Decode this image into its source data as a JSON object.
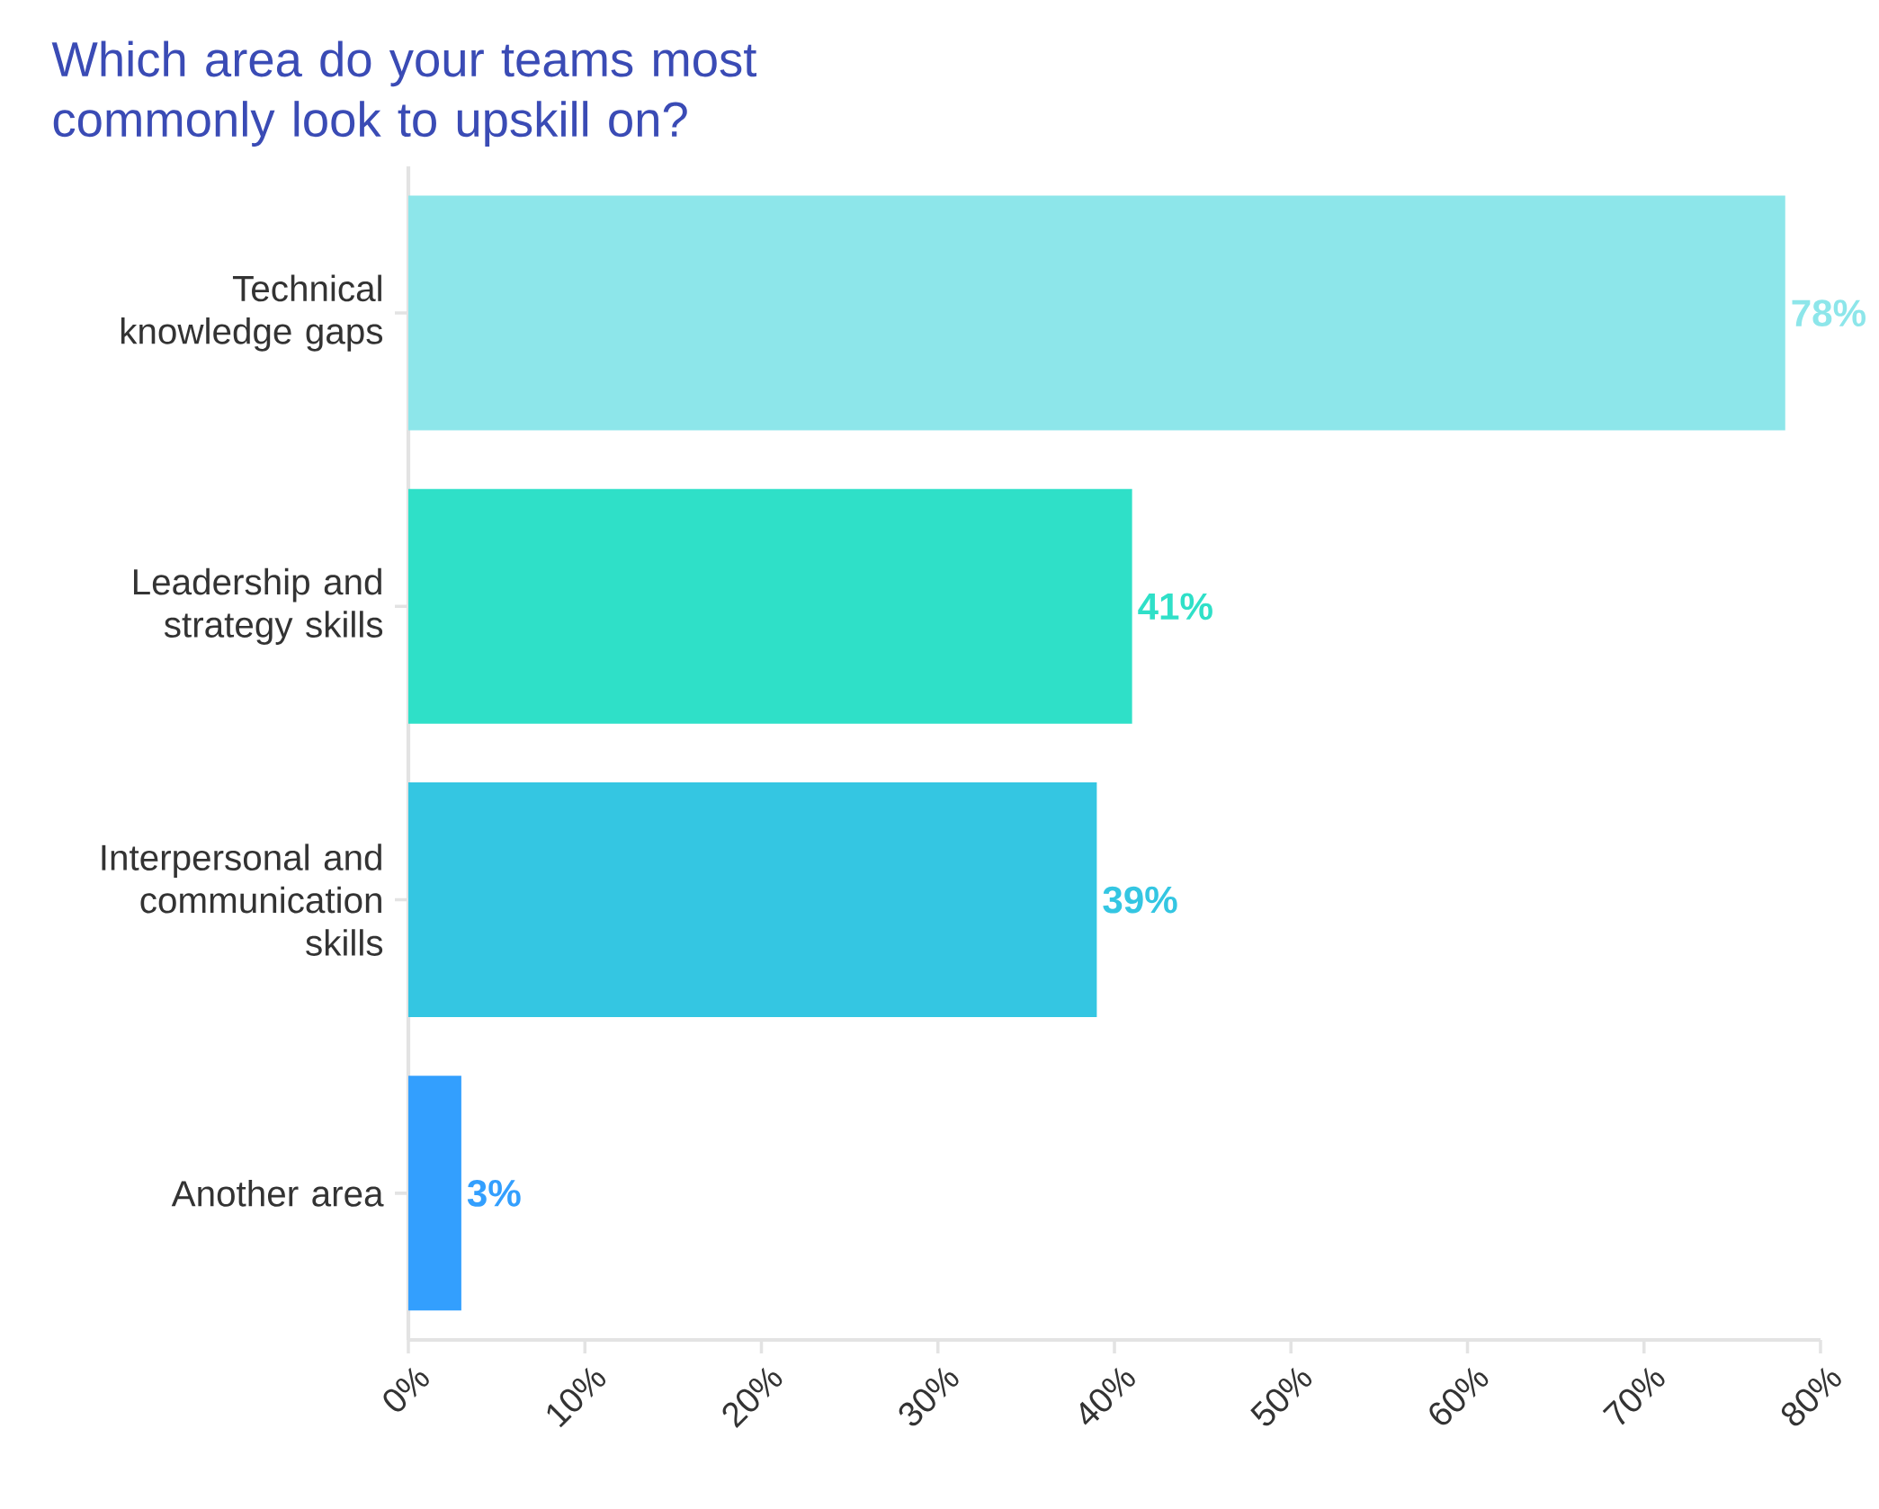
{
  "chart_data": {
    "type": "bar",
    "orientation": "horizontal",
    "title": "Which area do your teams most commonly look to upskill on?",
    "categories": [
      "Technical knowledge gaps",
      "Leadership and strategy skills",
      "Interpersonal and communication skills",
      "Another area"
    ],
    "values": [
      78,
      41,
      39,
      3
    ],
    "colors": [
      "#8de6ea",
      "#2fe0c8",
      "#34c6e2",
      "#339ffe"
    ],
    "value_labels": [
      "78%",
      "41%",
      "39%",
      "3%"
    ],
    "xlim": [
      0,
      80
    ],
    "xticks": [
      {
        "value": 0,
        "label": "0%"
      },
      {
        "value": 10,
        "label": "10%"
      },
      {
        "value": 20,
        "label": "20%"
      },
      {
        "value": 30,
        "label": "30%"
      },
      {
        "value": 40,
        "label": "40%"
      },
      {
        "value": 50,
        "label": "50%"
      },
      {
        "value": 60,
        "label": "60%"
      },
      {
        "value": 70,
        "label": "70%"
      },
      {
        "value": 80,
        "label": "80%"
      }
    ],
    "grid": false
  }
}
